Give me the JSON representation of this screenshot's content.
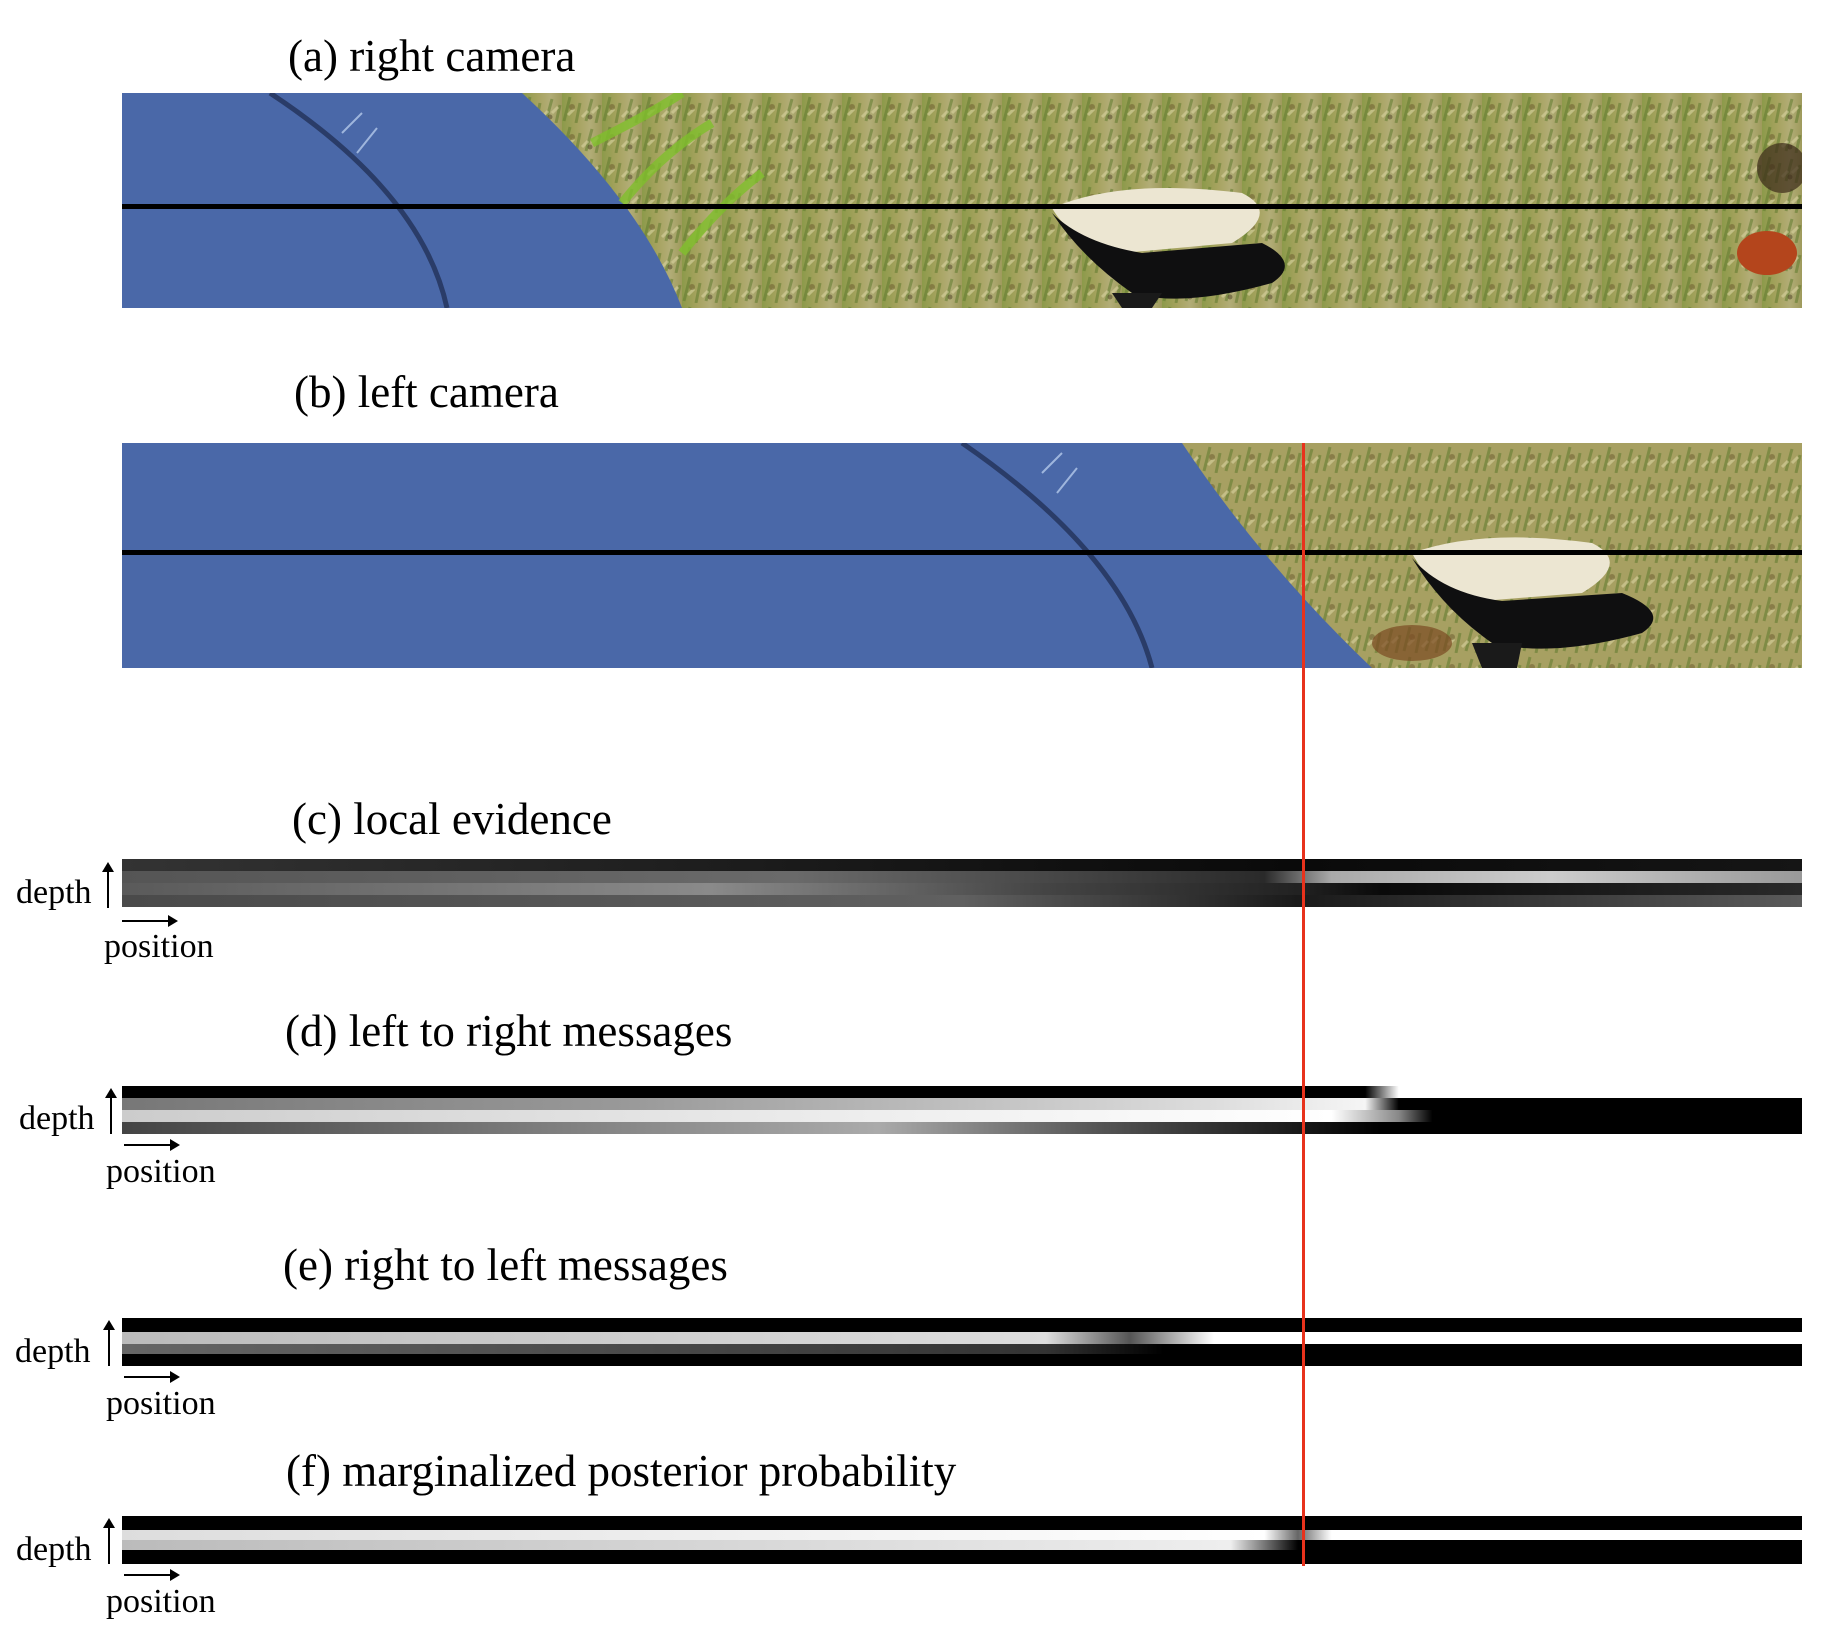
{
  "panels": {
    "a": {
      "title": "(a) right camera"
    },
    "b": {
      "title": "(b) left camera"
    },
    "c": {
      "title": "(c) local evidence",
      "depth_label": "depth",
      "position_label": "position"
    },
    "d": {
      "title": "(d) left to right messages",
      "depth_label": "depth",
      "position_label": "position"
    },
    "e": {
      "title": "(e) right to left messages",
      "depth_label": "depth",
      "position_label": "position"
    },
    "f": {
      "title": "(f) marginalized posterior probability",
      "depth_label": "depth",
      "position_label": "position"
    }
  },
  "colors": {
    "marker": "#e8321c",
    "sky": "#4a68a8",
    "grass": "#8c9a4a",
    "scanline": "#000000"
  }
}
